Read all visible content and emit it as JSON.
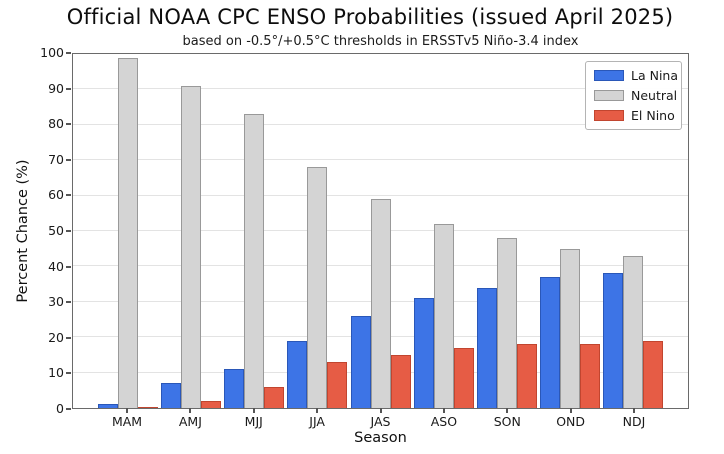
{
  "chart_data": {
    "type": "bar",
    "title": "Official NOAA CPC ENSO Probabilities (issued April 2025)",
    "subtitle": "based on -0.5°/+0.5°C thresholds in ERSSTv5 Niño-3.4 index",
    "xlabel": "Season",
    "ylabel": "Percent Chance (%)",
    "categories": [
      "MAM",
      "AMJ",
      "MJJ",
      "JJA",
      "JAS",
      "ASO",
      "SON",
      "OND",
      "NDJ"
    ],
    "series": [
      {
        "name": "La Nina",
        "color": "#3d74e6",
        "edge_color": "#2a57b8",
        "values": [
          1,
          7,
          11,
          19,
          26,
          31,
          34,
          37,
          38
        ]
      },
      {
        "name": "Neutral",
        "color": "#d4d4d4",
        "edge_color": "#999999",
        "values": [
          99,
          91,
          83,
          68,
          59,
          52,
          48,
          45,
          43
        ]
      },
      {
        "name": "El Nino",
        "color": "#e65c45",
        "edge_color": "#c1452f",
        "values": [
          0,
          2,
          6,
          13,
          15,
          17,
          18,
          18,
          19
        ]
      }
    ],
    "ylim": [
      0,
      100
    ],
    "yticks": [
      0,
      10,
      20,
      30,
      40,
      50,
      60,
      70,
      80,
      90,
      100
    ],
    "grid": true,
    "legend_position": "upper right"
  }
}
